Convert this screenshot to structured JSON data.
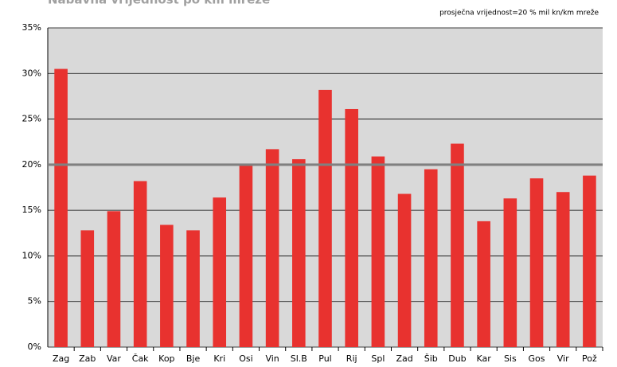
{
  "chart_data": {
    "type": "bar",
    "title": "Nabavna vrijednost po km mreže",
    "annotation": "prosječna vrijednost=20 % mil kn/km mreže",
    "categories": [
      "Zag",
      "Zab",
      "Var",
      "Čak",
      "Kop",
      "Bje",
      "Kri",
      "Osi",
      "Vin",
      "Sl.B",
      "Pul",
      "Rij",
      "Spl",
      "Zad",
      "Šib",
      "Dub",
      "Kar",
      "Sis",
      "Gos",
      "Vir",
      "Pož"
    ],
    "values": [
      30.5,
      12.8,
      14.9,
      18.2,
      13.4,
      12.8,
      16.4,
      20.0,
      21.7,
      20.6,
      28.2,
      26.1,
      20.9,
      16.8,
      19.5,
      22.3,
      13.8,
      16.3,
      18.5,
      17.0,
      18.8
    ],
    "color": "#e8322f",
    "reference_line": 20,
    "reference_color": "#808080",
    "ylim": [
      0,
      35
    ],
    "yticks": [
      {
        "value": 0,
        "label": "0%"
      },
      {
        "value": 5,
        "label": "5%"
      },
      {
        "value": 10,
        "label": "10%"
      },
      {
        "value": 15,
        "label": "15%"
      },
      {
        "value": 20,
        "label": "20%"
      },
      {
        "value": 25,
        "label": "25%"
      },
      {
        "value": 30,
        "label": "30%"
      },
      {
        "value": 35,
        "label": "35%"
      }
    ],
    "grid": true
  }
}
